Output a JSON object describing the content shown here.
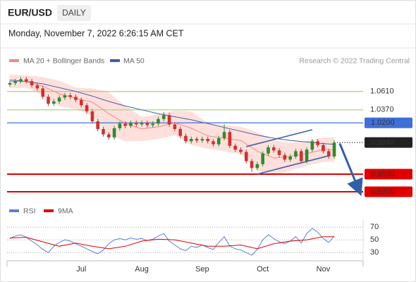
{
  "header": {
    "symbol": "EUR/USD",
    "timeframe": "DAILY",
    "timestamp": "Monday, November 7, 2022 6:26:15 AM CET"
  },
  "chart_data": [
    {
      "type": "candlestick",
      "credit": "Research © 2022 Trading Central",
      "categories": [
        null,
        null,
        null,
        null,
        null,
        null,
        null,
        null,
        null,
        null,
        null,
        null,
        null,
        "Jul",
        null,
        null,
        null,
        null,
        null,
        null,
        null,
        null,
        null,
        null,
        "Aug",
        null,
        null,
        null,
        null,
        null,
        null,
        null,
        null,
        null,
        null,
        "Sep",
        null,
        null,
        null,
        null,
        null,
        null,
        null,
        null,
        null,
        null,
        "Oct",
        null,
        null,
        null,
        null,
        null,
        null,
        null,
        null,
        null,
        null,
        "Nov",
        null,
        null
      ],
      "open": [
        1.07,
        1.072,
        1.0745,
        1.077,
        1.0745,
        1.069,
        1.065,
        1.054,
        1.045,
        1.048,
        1.053,
        1.056,
        1.054,
        1.05,
        1.043,
        1.035,
        1.022,
        1.012,
        1.005,
        1.001,
        1.013,
        1.019,
        1.016,
        1.02,
        1.018,
        1.02,
        1.017,
        1.019,
        1.025,
        1.03,
        1.018,
        1.012,
        1.003,
        0.996,
        0.999,
        0.997,
        0.999,
        0.996,
        0.992,
        1.0,
        1.008,
        0.99,
        0.985,
        0.982,
        0.97,
        0.961,
        0.966,
        0.98,
        0.988,
        0.984,
        0.978,
        0.972,
        0.976,
        0.983,
        0.97,
        0.985,
        0.996,
        0.991,
        0.983,
        0.976
      ],
      "high": [
        1.075,
        1.0775,
        1.08,
        1.08,
        1.0775,
        1.072,
        1.068,
        1.057,
        1.051,
        1.056,
        1.059,
        1.059,
        1.057,
        1.053,
        1.046,
        1.038,
        1.025,
        1.015,
        1.008,
        1.016,
        1.022,
        1.022,
        1.023,
        1.023,
        1.023,
        1.023,
        1.022,
        1.028,
        1.034,
        1.033,
        1.021,
        1.015,
        1.006,
        1.002,
        1.002,
        1.002,
        1.002,
        0.999,
        1.003,
        1.018,
        1.011,
        0.993,
        0.988,
        0.985,
        0.973,
        0.969,
        0.983,
        0.991,
        0.991,
        0.987,
        0.981,
        0.979,
        0.986,
        0.986,
        0.988,
        0.999,
        0.999,
        0.994,
        0.986,
        0.9975
      ],
      "low": [
        1.067,
        1.069,
        1.0715,
        1.0715,
        1.066,
        1.062,
        1.051,
        1.042,
        1.042,
        1.045,
        1.05,
        1.051,
        1.047,
        1.04,
        1.032,
        1.019,
        1.009,
        1.002,
        0.998,
        0.998,
        1.01,
        1.013,
        1.013,
        1.015,
        1.015,
        1.014,
        1.014,
        1.016,
        1.022,
        1.015,
        1.009,
        1.0,
        0.993,
        0.993,
        0.994,
        0.994,
        0.993,
        0.989,
        0.989,
        0.997,
        0.987,
        0.982,
        0.979,
        0.967,
        0.956,
        0.958,
        0.963,
        0.977,
        0.981,
        0.975,
        0.969,
        0.969,
        0.973,
        0.967,
        0.967,
        0.982,
        0.988,
        0.98,
        0.973,
        0.973
      ],
      "close": [
        1.072,
        1.0745,
        1.077,
        1.0745,
        1.069,
        1.065,
        1.054,
        1.045,
        1.048,
        1.053,
        1.056,
        1.054,
        1.05,
        1.043,
        1.035,
        1.022,
        1.012,
        1.005,
        1.001,
        1.013,
        1.019,
        1.016,
        1.02,
        1.018,
        1.02,
        1.017,
        1.019,
        1.025,
        1.03,
        1.018,
        1.012,
        1.003,
        0.996,
        0.999,
        0.997,
        0.999,
        0.996,
        0.992,
        1.0,
        1.008,
        0.99,
        0.985,
        0.982,
        0.97,
        0.961,
        0.966,
        0.98,
        0.988,
        0.984,
        0.978,
        0.972,
        0.976,
        0.983,
        0.97,
        0.985,
        0.996,
        0.991,
        0.983,
        0.976,
        0.9943
      ],
      "up_color": "#2e8b2e",
      "down_color": "#d32f2f",
      "bands": {
        "color": "#fde0dc",
        "x": [
          0,
          3,
          6,
          9,
          12,
          15,
          18,
          21,
          24,
          27,
          30,
          33,
          36,
          39,
          42,
          45,
          48,
          51,
          54,
          57,
          59
        ],
        "upper": [
          1.083,
          1.082,
          1.08,
          1.075,
          1.066,
          1.065,
          1.06,
          1.042,
          1.028,
          1.031,
          1.036,
          1.035,
          1.02,
          1.017,
          1.015,
          1.008,
          0.997,
          0.994,
          0.996,
          1.001,
          1.001
        ],
        "lower": [
          1.065,
          1.066,
          1.056,
          1.042,
          1.038,
          1.029,
          1.004,
          0.996,
          0.996,
          0.999,
          1.004,
          0.991,
          0.986,
          0.983,
          0.979,
          0.958,
          0.951,
          0.958,
          0.964,
          0.969,
          0.969
        ]
      },
      "series": [
        {
          "name": "MA 20 + Bollinger Bands",
          "color": "#f28b82",
          "x": [
            0,
            3,
            6,
            9,
            12,
            15,
            18,
            21,
            24,
            27,
            30,
            33,
            36,
            39,
            42,
            45,
            48,
            51,
            54,
            57,
            59
          ],
          "values": [
            1.074,
            1.074,
            1.068,
            1.058,
            1.052,
            1.047,
            1.032,
            1.019,
            1.012,
            1.015,
            1.02,
            1.013,
            1.003,
            1.0,
            0.997,
            0.983,
            0.974,
            0.976,
            0.98,
            0.985,
            0.985
          ]
        },
        {
          "name": "MA 50",
          "color": "#3f5fa8",
          "x": [
            0,
            3,
            6,
            9,
            12,
            15,
            18,
            21,
            24,
            27,
            30,
            33,
            36,
            39,
            42,
            45,
            48,
            51,
            54,
            57,
            59
          ],
          "values": [
            1.076,
            1.074,
            1.071,
            1.066,
            1.061,
            1.055,
            1.048,
            1.042,
            1.037,
            1.032,
            1.028,
            1.024,
            1.019,
            1.014,
            1.009,
            1.004,
            1.0,
            0.997,
            0.995,
            0.993,
            0.992
          ]
        }
      ],
      "levels": [
        {
          "value": 1.061,
          "label": "1.0610",
          "color": "#a5d07a",
          "style": "text"
        },
        {
          "value": 1.037,
          "label": "1.0370",
          "color": "#a5d07a",
          "style": "text"
        },
        {
          "value": 1.02,
          "label": "1.0200",
          "color": "#3f6fd8",
          "style": "box"
        },
        {
          "value": 0.9943,
          "label": "0.9943",
          "color": "#222222",
          "style": "dotted"
        },
        {
          "value": 0.953,
          "label": "0.9530",
          "color": "#e00000",
          "style": "box"
        },
        {
          "value": 0.93,
          "label": "0.9300",
          "color": "#e00000",
          "style": "box"
        }
      ],
      "trendlines": [
        {
          "x": [
            43,
            55
          ],
          "y": [
            0.989,
            1.011
          ],
          "color": "#3f5fa8"
        },
        {
          "x": [
            45,
            58
          ],
          "y": [
            0.953,
            0.977
          ],
          "color": "#3f5fa8"
        }
      ],
      "arrow": {
        "x": [
          60,
          63.5
        ],
        "y": [
          0.993,
          0.932
        ],
        "color": "#2f5fa8"
      },
      "xlim": [
        -0.5,
        64.25
      ],
      "ylim": [
        0.918,
        1.093
      ]
    },
    {
      "type": "line",
      "series": [
        {
          "name": "RSI",
          "color": "#5b7fd6",
          "x": [
            0,
            1,
            2,
            3,
            4,
            5,
            6,
            7,
            8,
            9,
            10,
            11,
            12,
            13,
            14,
            15,
            16,
            17,
            18,
            19,
            20,
            21,
            22,
            23,
            24,
            25,
            26,
            27,
            28,
            29,
            30,
            31,
            32,
            33,
            34,
            35,
            36,
            37,
            38,
            39,
            40,
            41,
            42,
            43,
            44,
            45,
            46,
            47,
            48,
            49,
            50,
            51,
            52,
            53,
            54,
            55,
            56,
            57,
            58,
            59
          ],
          "values": [
            52,
            56,
            58,
            54,
            48,
            42,
            35,
            30,
            40,
            46,
            50,
            48,
            44,
            40,
            36,
            32,
            28,
            34,
            44,
            50,
            52,
            50,
            53,
            51,
            52,
            49,
            51,
            56,
            60,
            48,
            42,
            36,
            33,
            40,
            38,
            42,
            38,
            35,
            46,
            55,
            40,
            36,
            34,
            30,
            26,
            35,
            50,
            58,
            52,
            47,
            44,
            48,
            55,
            45,
            60,
            68,
            62,
            52,
            46,
            56
          ]
        },
        {
          "name": "9MA",
          "color": "#e00000",
          "x": [
            0,
            3,
            6,
            9,
            12,
            15,
            18,
            21,
            24,
            27,
            30,
            33,
            36,
            39,
            42,
            45,
            48,
            51,
            54,
            57,
            59
          ],
          "values": [
            53,
            54,
            47,
            40,
            45,
            40,
            36,
            40,
            48,
            51,
            50,
            45,
            40,
            40,
            42,
            36,
            44,
            48,
            50,
            55,
            55
          ]
        }
      ],
      "yticks": [
        70,
        50,
        30
      ],
      "xlim": [
        -0.5,
        64.25
      ],
      "ylim": [
        17,
        78
      ]
    }
  ]
}
